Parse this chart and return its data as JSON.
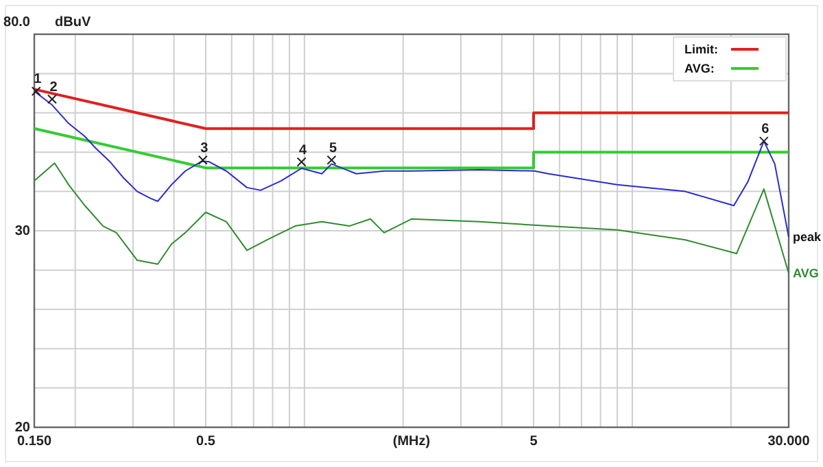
{
  "chart_data": {
    "type": "line",
    "ylabel": "dBuV",
    "xlabel": "(MHz)",
    "log": "x",
    "grid": true,
    "legend": "top right",
    "marker": "none",
    "xlim": [
      0.15,
      30
    ],
    "ylim": [
      -20,
      80
    ],
    "xticks": [
      {
        "value": 0.15,
        "label": "0.150"
      },
      {
        "value": 0.2,
        "label": null
      },
      {
        "value": 0.3,
        "label": null
      },
      {
        "value": 0.4,
        "label": null
      },
      0.5,
      {
        "value": 0.6,
        "label": null
      },
      {
        "value": 0.7,
        "label": null
      },
      {
        "value": 0.8,
        "label": null
      },
      {
        "value": 0.9,
        "label": null
      },
      {
        "value": 1,
        "label": null
      },
      {
        "value": 2,
        "label": null
      },
      {
        "value": 3,
        "label": null
      },
      {
        "value": 4,
        "label": null
      },
      5,
      {
        "value": 6,
        "label": null
      },
      {
        "value": 7,
        "label": null
      },
      {
        "value": 8,
        "label": null
      },
      {
        "value": 9,
        "label": null
      },
      {
        "value": 10,
        "label": null
      },
      {
        "value": 20,
        "label": null
      },
      {
        "value": 30,
        "label": "30.000"
      }
    ],
    "yticks": [
      {
        "value": 80,
        "label": "80.0"
      },
      {
        "value": 70,
        "label": null
      },
      {
        "value": 60,
        "label": null
      },
      {
        "value": 50,
        "label": null
      },
      {
        "value": 40,
        "label": null
      },
      30,
      {
        "value": 20,
        "label": null
      },
      {
        "value": 10,
        "label": null
      },
      {
        "value": 0,
        "label": null
      },
      {
        "value": -10,
        "label": null
      },
      {
        "value": -20,
        "label": "20"
      }
    ],
    "series": [
      {
        "name": "Limit:",
        "color": "#e02020",
        "x": [
          0.15,
          0.5,
          5,
          5,
          30
        ],
        "values": [
          66,
          56,
          56,
          60,
          60
        ]
      },
      {
        "name": "AVG:",
        "color": "#33cc33",
        "x": [
          0.15,
          0.5,
          5,
          5,
          30
        ],
        "values": [
          56,
          46,
          46,
          50,
          50
        ]
      },
      {
        "name": "peak",
        "color": "#2a2ad0",
        "x": [
          0.15,
          0.17,
          0.191,
          0.214,
          0.231,
          0.255,
          0.281,
          0.309,
          0.34,
          0.357,
          0.393,
          0.433,
          0.485,
          0.51,
          0.578,
          0.668,
          0.735,
          0.849,
          0.98,
          1.13,
          1.21,
          1.44,
          1.75,
          2.12,
          3.42,
          5.04,
          5.55,
          9.0,
          14.5,
          20.4,
          22.5,
          25.2,
          27.2,
          30
        ],
        "values": [
          65.5,
          62,
          57.3,
          54,
          51,
          47.6,
          43.4,
          40,
          38.2,
          37.5,
          41.7,
          45.2,
          47.6,
          47.6,
          45.2,
          41,
          40.3,
          42.7,
          45.9,
          44.5,
          47,
          44.5,
          45.2,
          45.2,
          45.5,
          45.2,
          44.5,
          41.7,
          40,
          36.4,
          42.4,
          52.8,
          47,
          28.4
        ]
      },
      {
        "name": "AVG",
        "color": "#2e8b2e",
        "x": [
          0.15,
          0.173,
          0.191,
          0.214,
          0.243,
          0.267,
          0.309,
          0.357,
          0.393,
          0.433,
          0.5,
          0.578,
          0.668,
          0.77,
          0.937,
          1.13,
          1.37,
          1.59,
          1.75,
          2.12,
          3.42,
          5.55,
          9.0,
          14.5,
          20.8,
          25.2,
          30
        ],
        "values": [
          42.7,
          47.2,
          41.7,
          36.4,
          31.2,
          29.5,
          22.5,
          21.5,
          26.6,
          29.5,
          34.7,
          32.3,
          25,
          27.7,
          31.2,
          32.3,
          31.2,
          33,
          29.5,
          33,
          32.3,
          31.2,
          30.2,
          27.7,
          24.2,
          40.6,
          19.2
        ]
      }
    ],
    "annotations": [
      {
        "text": "1",
        "x": 0.152,
        "y": 65.5
      },
      {
        "text": "2",
        "x": 0.17,
        "y": 63.5
      },
      {
        "text": "3",
        "x": 0.49,
        "y": 48
      },
      {
        "text": "4",
        "x": 0.98,
        "y": 47.5
      },
      {
        "text": "5",
        "x": 1.21,
        "y": 48
      },
      {
        "text": "6",
        "x": 25.2,
        "y": 52.8
      }
    ]
  }
}
